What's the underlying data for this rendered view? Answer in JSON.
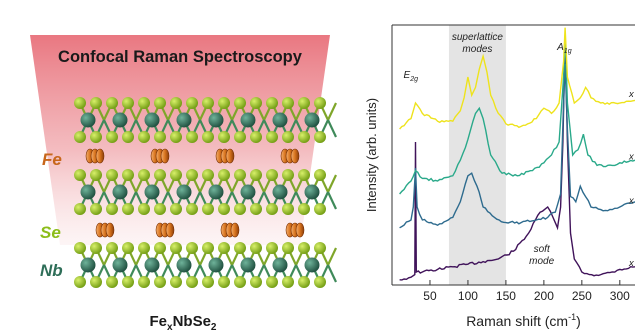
{
  "figure": {
    "left_panel": {
      "title": "Confocal Raman Spectroscopy",
      "labels": {
        "fe": "Fe",
        "se": "Se",
        "nb": "Nb"
      },
      "formula": {
        "base": "Fe",
        "subscript": "x",
        "tail": "NbSe",
        "tail_subscript": "2"
      },
      "colors": {
        "beam": "#e8707a",
        "fe": "#c8661a",
        "se": "#93c41a",
        "nb": "#2e6e58",
        "fe_label": "#c8661a",
        "se_label": "#8cbd1a",
        "nb_label": "#2e6e58"
      }
    },
    "chart_data": {
      "type": "line",
      "xlabel_main": "Raman shift (cm",
      "xlabel_sup": "-1",
      "xlabel_close": ")",
      "ylabel": "Intensity (arb. units)",
      "xlim": [
        0,
        320
      ],
      "x_ticks": [
        50,
        100,
        150,
        200,
        250,
        300
      ],
      "shaded_region": {
        "from": 75,
        "to": 150,
        "label_line1": "superlattice",
        "label_line2": "modes"
      },
      "annotations": {
        "e2g": {
          "main": "E",
          "sub": "2g",
          "x": 31
        },
        "a1g": {
          "main": "A",
          "sub": "1g",
          "x": 228
        },
        "soft_mode": {
          "line1": "soft",
          "line2": "mode",
          "x": 205
        }
      },
      "series": [
        {
          "name": "x = 0",
          "color": "#40135a",
          "x": [
            10,
            25,
            30,
            31,
            32,
            40,
            60,
            80,
            100,
            120,
            140,
            160,
            180,
            195,
            205,
            212,
            218,
            222,
            225,
            228,
            231,
            235,
            240,
            250,
            260,
            275,
            290,
            300,
            320
          ],
          "y": [
            0.02,
            0.03,
            0.04,
            0.55,
            0.05,
            0.05,
            0.06,
            0.07,
            0.08,
            0.09,
            0.1,
            0.13,
            0.2,
            0.28,
            0.3,
            0.26,
            0.22,
            0.3,
            0.55,
            0.95,
            0.55,
            0.2,
            0.1,
            0.05,
            0.04,
            0.04,
            0.05,
            0.06,
            0.07
          ]
        },
        {
          "name": "x = 0.1",
          "color": "#2e6b8e",
          "x": [
            10,
            25,
            28,
            31,
            33,
            40,
            60,
            80,
            90,
            100,
            105,
            112,
            120,
            135,
            150,
            170,
            190,
            205,
            215,
            222,
            226,
            228,
            231,
            235,
            242,
            248,
            255,
            262,
            275,
            290,
            300,
            320
          ],
          "y": [
            0.22,
            0.25,
            0.3,
            0.45,
            0.3,
            0.25,
            0.23,
            0.26,
            0.32,
            0.42,
            0.43,
            0.38,
            0.3,
            0.26,
            0.24,
            0.24,
            0.25,
            0.26,
            0.28,
            0.35,
            0.7,
            0.85,
            0.6,
            0.34,
            0.32,
            0.38,
            0.34,
            0.3,
            0.29,
            0.29,
            0.3,
            0.32
          ]
        },
        {
          "name": "x = 0.15",
          "color": "#2aa98a",
          "x": [
            10,
            25,
            31,
            40,
            60,
            80,
            90,
            100,
            110,
            115,
            120,
            130,
            145,
            165,
            185,
            200,
            210,
            220,
            226,
            228,
            231,
            238,
            245,
            252,
            258,
            270,
            290,
            300,
            320
          ],
          "y": [
            0.35,
            0.4,
            0.44,
            0.41,
            0.4,
            0.42,
            0.48,
            0.56,
            0.66,
            0.68,
            0.64,
            0.5,
            0.43,
            0.42,
            0.44,
            0.47,
            0.5,
            0.55,
            0.8,
            0.96,
            0.7,
            0.5,
            0.52,
            0.58,
            0.5,
            0.46,
            0.46,
            0.47,
            0.48
          ]
        },
        {
          "name": "x = 0.2",
          "color": "#eee31c",
          "x": [
            10,
            25,
            31,
            40,
            60,
            80,
            90,
            95,
            100,
            105,
            110,
            115,
            120,
            125,
            130,
            140,
            150,
            170,
            190,
            200,
            210,
            220,
            226,
            228,
            231,
            240,
            248,
            255,
            262,
            275,
            300,
            320
          ],
          "y": [
            0.6,
            0.64,
            0.7,
            0.66,
            0.63,
            0.63,
            0.67,
            0.72,
            0.8,
            0.73,
            0.76,
            0.83,
            0.88,
            0.82,
            0.73,
            0.66,
            0.62,
            0.61,
            0.64,
            0.68,
            0.66,
            0.7,
            0.86,
            0.99,
            0.8,
            0.7,
            0.72,
            0.76,
            0.72,
            0.7,
            0.7,
            0.71
          ]
        }
      ],
      "legend_labels": [
        "x = 0.2",
        "x = 0.15",
        "x = 0.1",
        "x = 0"
      ]
    }
  }
}
